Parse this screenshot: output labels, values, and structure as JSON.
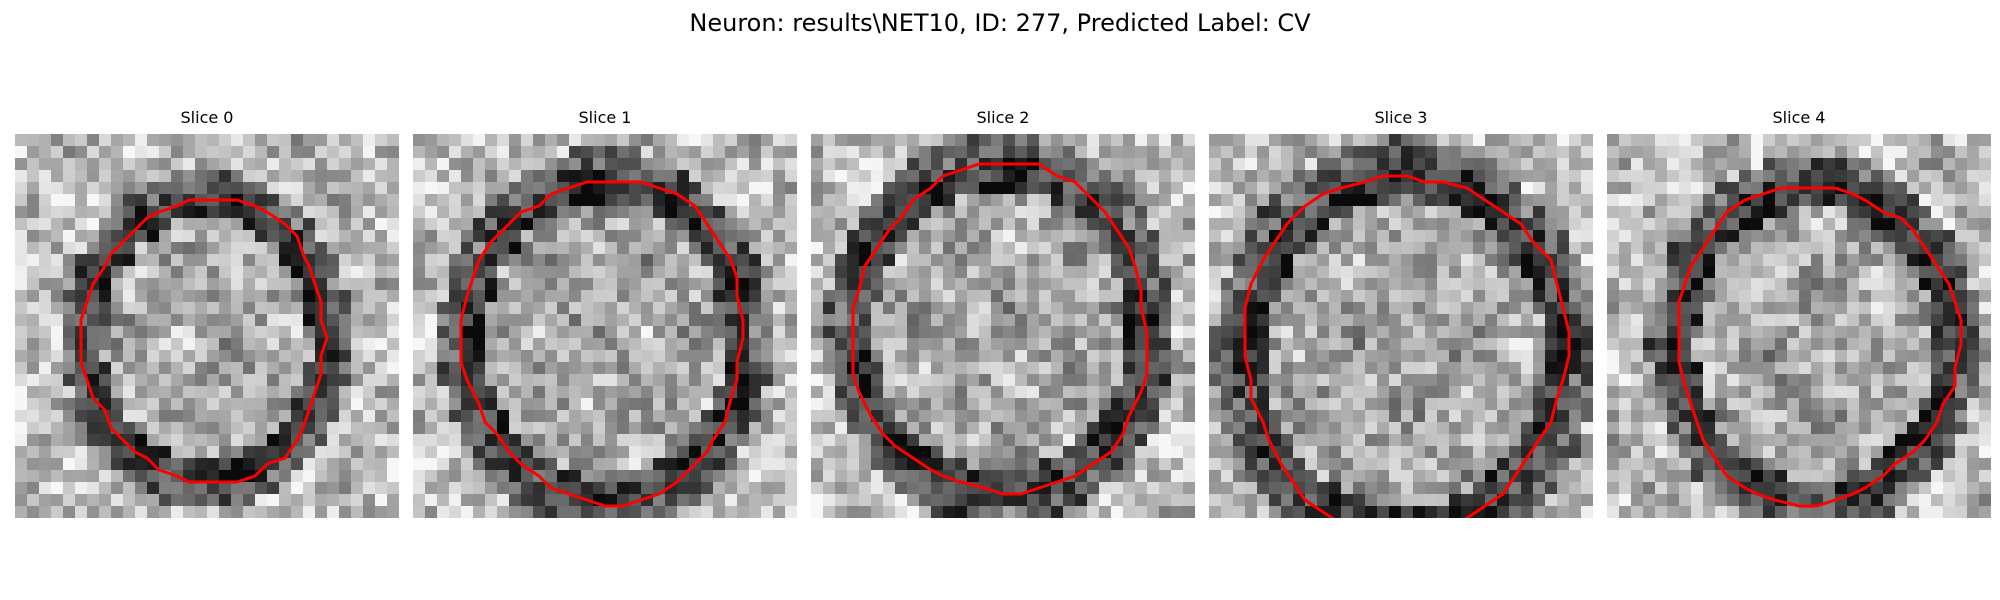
{
  "figure": {
    "title": "Neuron: results\\NET10, ID: 277, Predicted Label: CV"
  },
  "slices": [
    {
      "title": "Slice 0"
    },
    {
      "title": "Slice 1"
    },
    {
      "title": "Slice 2"
    },
    {
      "title": "Slice 3"
    },
    {
      "title": "Slice 4"
    }
  ],
  "colors": {
    "contour": "#ff0000",
    "background": "#ffffff"
  }
}
